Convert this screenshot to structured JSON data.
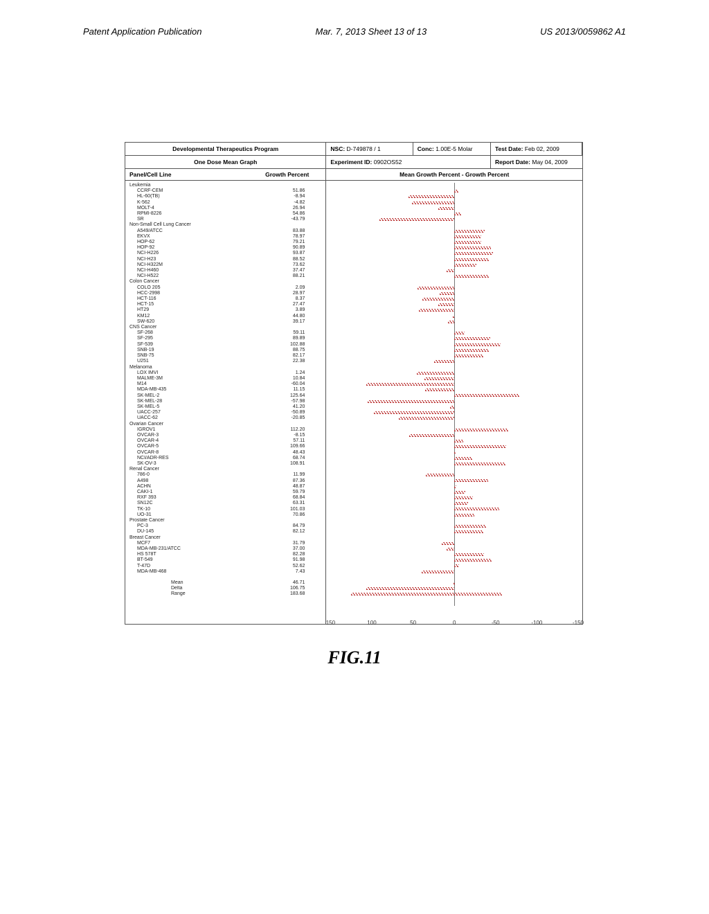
{
  "header": {
    "left": "Patent Application Publication",
    "center": "Mar. 7, 2013  Sheet 13 of 13",
    "right": "US 2013/0059862 A1"
  },
  "figure_caption": "FIG.11",
  "top": {
    "program": "Developmental Therapeutics Program",
    "subtitle": "One Dose Mean Graph",
    "nsc_label": "NSC:",
    "nsc_value": "D-749878 / 1",
    "conc_label": "Conc:",
    "conc_value": "1.00E-5 Molar",
    "test_label": "Test Date:",
    "test_value": "Feb 02, 2009",
    "exp_label": "Experiment ID:",
    "exp_value": "0902OS52",
    "report_label": "Report Date:",
    "report_value": "May 04, 2009"
  },
  "columns": {
    "panel": "Panel/Cell Line",
    "growth": "Growth Percent",
    "right_header": "Mean Growth Percent - Growth Percent"
  },
  "chart": {
    "xmin": -150,
    "xmax": 150,
    "ticks": [
      150,
      100,
      50,
      0,
      -50,
      -100,
      -150
    ],
    "bar_color_pattern": "#b33",
    "zero_color": "#777",
    "ref_mean": 46.71
  },
  "groups": [
    {
      "name": "Leukemia",
      "rows": [
        {
          "n": "CCRF-CEM",
          "v": 51.86
        },
        {
          "n": "HL-60(TB)",
          "v": -8.94
        },
        {
          "n": "K-562",
          "v": -4.82
        },
        {
          "n": "MOLT-4",
          "v": 26.94
        },
        {
          "n": "RPMI-8226",
          "v": 54.86
        },
        {
          "n": "SR",
          "v": -43.79
        }
      ]
    },
    {
      "name": "Non-Small Cell Lung Cancer",
      "rows": [
        {
          "n": "A549/ATCC",
          "v": 83.88
        },
        {
          "n": "EKVX",
          "v": 78.97
        },
        {
          "n": "HOP-62",
          "v": 79.21
        },
        {
          "n": "HOP-92",
          "v": 90.89
        },
        {
          "n": "NCI-H226",
          "v": 93.87
        },
        {
          "n": "NCI-H23",
          "v": 88.52
        },
        {
          "n": "NCI-H322M",
          "v": 73.62
        },
        {
          "n": "NCI-H460",
          "v": 37.47
        },
        {
          "n": "NCI-H522",
          "v": 88.21
        }
      ]
    },
    {
      "name": "Colon Cancer",
      "rows": [
        {
          "n": "COLO 205",
          "v": 2.09
        },
        {
          "n": "HCC-2998",
          "v": 28.97
        },
        {
          "n": "HCT-116",
          "v": 8.37
        },
        {
          "n": "HCT-15",
          "v": 27.47
        },
        {
          "n": "HT29",
          "v": 3.89
        },
        {
          "n": "KM12",
          "v": 44.8
        },
        {
          "n": "SW-620",
          "v": 39.17
        }
      ]
    },
    {
      "name": "CNS Cancer",
      "rows": [
        {
          "n": "SF-268",
          "v": 59.11
        },
        {
          "n": "SF-295",
          "v": 89.89
        },
        {
          "n": "SF-539",
          "v": 102.88
        },
        {
          "n": "SNB-19",
          "v": 88.75
        },
        {
          "n": "SNB-75",
          "v": 82.17
        },
        {
          "n": "U251",
          "v": 22.38
        }
      ]
    },
    {
      "name": "Melanoma",
      "rows": [
        {
          "n": "LOX IMVI",
          "v": 1.24
        },
        {
          "n": "MALME-3M",
          "v": 10.84
        },
        {
          "n": "M14",
          "v": -60.04
        },
        {
          "n": "MDA-MB-435",
          "v": 11.15
        },
        {
          "n": "SK-MEL-2",
          "v": 125.64
        },
        {
          "n": "SK-MEL-28",
          "v": -57.98
        },
        {
          "n": "SK-MEL-5",
          "v": 41.2
        },
        {
          "n": "UACC-257",
          "v": -50.89
        },
        {
          "n": "UACC-62",
          "v": -20.85
        }
      ]
    },
    {
      "name": "Ovarian Cancer",
      "rows": [
        {
          "n": "IGROV1",
          "v": 112.2
        },
        {
          "n": "OVCAR-3",
          "v": -8.15
        },
        {
          "n": "OVCAR-4",
          "v": 57.11
        },
        {
          "n": "OVCAR-5",
          "v": 109.66
        },
        {
          "n": "OVCAR-8",
          "v": 48.43
        },
        {
          "n": "NCI/ADR-RES",
          "v": 68.74
        },
        {
          "n": "SK-OV-3",
          "v": 108.91
        }
      ]
    },
    {
      "name": "Renal Cancer",
      "rows": [
        {
          "n": "786-0",
          "v": 11.99
        },
        {
          "n": "A498",
          "v": 87.36
        },
        {
          "n": "ACHN",
          "v": 48.87
        },
        {
          "n": "CAKI-1",
          "v": 59.79
        },
        {
          "n": "RXF 393",
          "v": 68.84
        },
        {
          "n": "SN12C",
          "v": 63.31
        },
        {
          "n": "TK-10",
          "v": 101.03
        },
        {
          "n": "UO-31",
          "v": 70.86
        }
      ]
    },
    {
      "name": "Prostate Cancer",
      "rows": [
        {
          "n": "PC-3",
          "v": 84.79
        },
        {
          "n": "DU-145",
          "v": 82.12
        }
      ]
    },
    {
      "name": "Breast Cancer",
      "rows": [
        {
          "n": "MCF7",
          "v": 31.79
        },
        {
          "n": "MDA-MB-231/ATCC",
          "v": 37.0
        },
        {
          "n": "HS 578T",
          "v": 82.28
        },
        {
          "n": "BT-549",
          "v": 91.98
        },
        {
          "n": "T-47D",
          "v": 52.62
        },
        {
          "n": "MDA-MB-468",
          "v": 7.43
        }
      ]
    }
  ],
  "summary": [
    {
      "n": "Mean",
      "v": 46.71
    },
    {
      "n": "Delta",
      "v": 106.75
    },
    {
      "n": "Range",
      "v": 183.68
    }
  ]
}
